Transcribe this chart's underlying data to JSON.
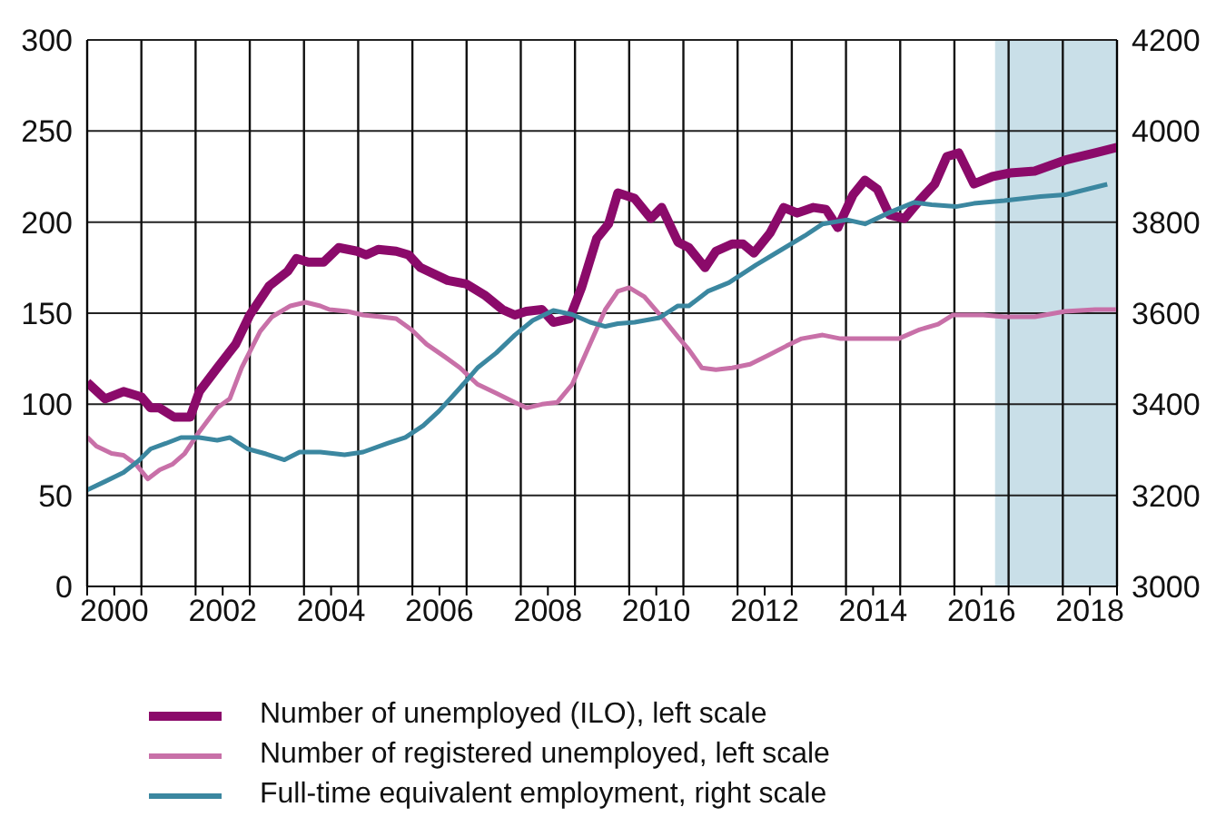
{
  "chart_data": {
    "type": "line",
    "xlim": [
      2000,
      2019
    ],
    "xticks": [
      {
        "value": 2000,
        "label": null
      },
      {
        "value": 2000.5,
        "label": "2000"
      },
      {
        "value": 2001,
        "label": null
      },
      {
        "value": 2002,
        "label": null
      },
      {
        "value": 2002.5,
        "label": "2002"
      },
      {
        "value": 2003,
        "label": null
      },
      {
        "value": 2004,
        "label": null
      },
      {
        "value": 2004.5,
        "label": "2004"
      },
      {
        "value": 2005,
        "label": null
      },
      {
        "value": 2006,
        "label": null
      },
      {
        "value": 2006.5,
        "label": "2006"
      },
      {
        "value": 2007,
        "label": null
      },
      {
        "value": 2008,
        "label": null
      },
      {
        "value": 2008.5,
        "label": "2008"
      },
      {
        "value": 2009,
        "label": null
      },
      {
        "value": 2010,
        "label": null
      },
      {
        "value": 2010.5,
        "label": "2010"
      },
      {
        "value": 2011,
        "label": null
      },
      {
        "value": 2012,
        "label": null
      },
      {
        "value": 2012.5,
        "label": "2012"
      },
      {
        "value": 2013,
        "label": null
      },
      {
        "value": 2014,
        "label": null
      },
      {
        "value": 2014.5,
        "label": "2014"
      },
      {
        "value": 2015,
        "label": null
      },
      {
        "value": 2016,
        "label": null
      },
      {
        "value": 2016.5,
        "label": "2016"
      },
      {
        "value": 2017,
        "label": null
      },
      {
        "value": 2018,
        "label": null
      },
      {
        "value": 2018.5,
        "label": "2018"
      },
      {
        "value": 2019,
        "label": null
      }
    ],
    "ylim": [
      0,
      300
    ],
    "yticks": [
      0,
      50,
      100,
      150,
      200,
      250,
      300
    ],
    "y2lim": [
      3000,
      4200
    ],
    "y2ticks": [
      3000,
      3200,
      3400,
      3600,
      3800,
      4000,
      4200
    ],
    "grid": true,
    "legend": "bottom",
    "marker": "none",
    "line_style": "solid",
    "bands": [
      {
        "axis": "x",
        "from": 2016.75,
        "to": 2019,
        "label": null,
        "color": "#c9dfe8"
      }
    ],
    "series": [
      {
        "name": "Number of unemployed (ILO), left scale",
        "color": "#8b0a6a",
        "x": [
          2000,
          2000.33,
          2000.67,
          2001,
          2001.17,
          2001.33,
          2001.6,
          2001.9,
          2002.07,
          2002.4,
          2002.74,
          2003,
          2003.36,
          2003.7,
          2003.86,
          2004.08,
          2004.36,
          2004.64,
          2004.98,
          2005.15,
          2005.37,
          2005.7,
          2005.93,
          2006.15,
          2006.65,
          2007,
          2007.33,
          2007.66,
          2007.89,
          2008.1,
          2008.39,
          2008.6,
          2008.9,
          2009.12,
          2009.4,
          2009.62,
          2009.79,
          2010.1,
          2010.4,
          2010.6,
          2010.9,
          2011.1,
          2011.4,
          2011.6,
          2011.9,
          2012.1,
          2012.3,
          2012.6,
          2012.85,
          2013.1,
          2013.4,
          2013.63,
          2013.85,
          2014.13,
          2014.35,
          2014.58,
          2014.8,
          2015.08,
          2015.36,
          2015.64,
          2015.86,
          2016.08,
          2016.36,
          2016.7,
          2017.03,
          2017.48,
          2018.04,
          2018.6,
          2019
        ],
        "values": [
          112,
          103,
          107,
          104,
          98,
          98,
          93,
          93,
          107,
          120,
          133,
          149,
          165,
          173,
          180,
          178,
          178,
          186,
          184,
          182,
          185,
          184,
          182,
          175,
          168,
          166,
          160,
          152,
          149,
          151,
          152,
          145,
          147,
          164,
          191,
          199,
          216,
          213,
          202,
          208,
          189,
          186,
          175,
          184,
          188,
          188,
          183,
          194,
          208,
          205,
          208,
          207,
          197,
          215,
          223,
          218,
          204,
          202,
          212,
          221,
          236,
          238,
          221,
          225,
          227,
          228,
          234,
          238,
          241
        ]
      },
      {
        "name": "Number of registered unemployed, left scale",
        "color": "#c870a8",
        "x": [
          2000,
          2000.17,
          2000.45,
          2000.67,
          2000.9,
          2001.12,
          2001.34,
          2001.57,
          2001.8,
          2002.07,
          2002.4,
          2002.63,
          2002.85,
          2003.19,
          2003.41,
          2003.75,
          2004.03,
          2004.3,
          2004.47,
          2004.8,
          2005.09,
          2005.42,
          2005.7,
          2005.98,
          2006.26,
          2006.6,
          2006.88,
          2007.2,
          2007.55,
          2007.89,
          2008.11,
          2008.39,
          2008.67,
          2008.95,
          2009.23,
          2009.56,
          2009.79,
          2010,
          2010.28,
          2010.6,
          2010.9,
          2011.1,
          2011.34,
          2011.6,
          2011.9,
          2012.23,
          2012.57,
          2012.9,
          2013.18,
          2013.57,
          2013.9,
          2014.24,
          2014.58,
          2014.97,
          2015.36,
          2015.7,
          2015.97,
          2016.25,
          2016.53,
          2016.92,
          2017.48,
          2018.04,
          2018.6,
          2019
        ],
        "values": [
          82,
          77,
          73,
          72,
          67,
          59,
          64,
          67,
          73,
          85,
          98,
          103,
          120,
          140,
          148,
          154,
          156,
          154,
          152,
          151,
          149,
          148,
          147,
          141,
          133,
          126,
          120,
          111,
          106,
          101,
          98,
          100,
          101,
          111,
          130,
          152,
          162,
          164,
          159,
          148,
          137,
          130,
          120,
          119,
          120,
          122,
          127,
          132,
          136,
          138,
          136,
          136,
          136,
          136,
          141,
          144,
          149,
          149,
          149,
          148,
          148,
          151,
          152,
          152
        ]
      },
      {
        "name": "Full-time equivalent employment, right scale",
        "color": "#3b87a0",
        "axis": "y2",
        "x": [
          2000,
          2000.34,
          2000.67,
          2000.95,
          2001.17,
          2001.45,
          2001.73,
          2002.07,
          2002.4,
          2002.63,
          2002.96,
          2003.3,
          2003.64,
          2003.92,
          2004.3,
          2004.75,
          2005.09,
          2005.54,
          2005.87,
          2006.2,
          2006.49,
          2006.88,
          2007.21,
          2007.55,
          2007.89,
          2008.22,
          2008.6,
          2008.95,
          2009.28,
          2009.56,
          2009.79,
          2010.1,
          2010.56,
          2010.9,
          2011.1,
          2011.45,
          2011.84,
          2012.34,
          2012.79,
          2013.24,
          2013.57,
          2014.02,
          2014.35,
          2014.8,
          2015.25,
          2015.58,
          2016.03,
          2016.36,
          2016.92,
          2017.59,
          2018.04,
          2018.48,
          2018.82
        ],
        "values": [
          3212,
          3231,
          3250,
          3276,
          3302,
          3314,
          3327,
          3327,
          3321,
          3327,
          3302,
          3291,
          3278,
          3295,
          3295,
          3289,
          3295,
          3314,
          3327,
          3353,
          3385,
          3436,
          3481,
          3513,
          3552,
          3584,
          3606,
          3597,
          3580,
          3571,
          3577,
          3580,
          3590,
          3616,
          3616,
          3648,
          3667,
          3706,
          3738,
          3770,
          3796,
          3805,
          3796,
          3821,
          3843,
          3838,
          3834,
          3841,
          3847,
          3856,
          3860,
          3873,
          3883
        ]
      }
    ]
  }
}
